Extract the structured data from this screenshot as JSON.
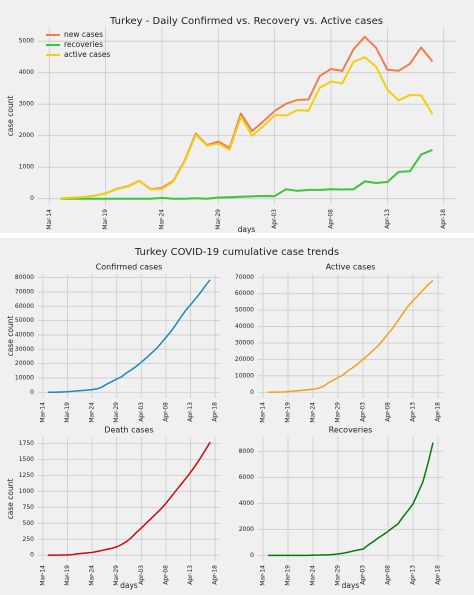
{
  "suptitle": "Turkey COVID-19 cumulative case trends",
  "chart_data": [
    {
      "type": "line",
      "title": "Turkey - Daily Confirmed vs. Recovery vs. Active cases",
      "xlabel": "days",
      "ylabel": "case count",
      "x": [
        "Mar-15",
        "Mar-16",
        "Mar-17",
        "Mar-18",
        "Mar-19",
        "Mar-20",
        "Mar-21",
        "Mar-22",
        "Mar-23",
        "Mar-24",
        "Mar-25",
        "Mar-26",
        "Mar-27",
        "Mar-28",
        "Mar-29",
        "Mar-30",
        "Mar-31",
        "Apr-01",
        "Apr-02",
        "Apr-03",
        "Apr-04",
        "Apr-05",
        "Apr-06",
        "Apr-07",
        "Apr-08",
        "Apr-09",
        "Apr-10",
        "Apr-11",
        "Apr-12",
        "Apr-13",
        "Apr-14",
        "Apr-15",
        "Apr-16",
        "Apr-17"
      ],
      "series": [
        {
          "name": "new cases",
          "color": "#ee7f4d",
          "values": [
            12,
            29,
            51,
            93,
            168,
            311,
            400,
            570,
            300,
            343,
            561,
            1196,
            2069,
            1704,
            1815,
            1610,
            2704,
            2148,
            2456,
            2786,
            3013,
            3135,
            3148,
            3892,
            4117,
            4056,
            4747,
            5138,
            4789,
            4093,
            4062,
            4281,
            4801,
            4353
          ]
        },
        {
          "name": "recoveries",
          "color": "#3cc43c",
          "values": [
            0,
            0,
            0,
            0,
            0,
            0,
            0,
            0,
            0,
            26,
            0,
            0,
            16,
            0,
            37,
            45,
            60,
            75,
            85,
            80,
            300,
            250,
            280,
            280,
            300,
            290,
            300,
            550,
            500,
            530,
            850,
            870,
            1400,
            1550
          ]
        },
        {
          "name": "active cases",
          "color": "#f3cf14",
          "values": [
            12,
            29,
            50,
            90,
            165,
            300,
            390,
            560,
            290,
            310,
            540,
            1170,
            2030,
            1680,
            1750,
            1550,
            2600,
            2000,
            2300,
            2650,
            2640,
            2810,
            2790,
            3520,
            3720,
            3660,
            4350,
            4490,
            4190,
            3460,
            3120,
            3290,
            3280,
            2680
          ]
        }
      ],
      "xlim": [
        "Mar-13",
        "Apr-19"
      ],
      "xticks": [
        "Mar-14",
        "Mar-19",
        "Mar-24",
        "Mar-29",
        "Apr-03",
        "Apr-08",
        "Apr-13",
        "Apr-18"
      ],
      "ylim": [
        -200,
        5450
      ],
      "yticks": [
        0,
        1000,
        2000,
        3000,
        4000,
        5000
      ],
      "grid": true,
      "legend": "upper left"
    },
    {
      "type": "line",
      "title": "Confirmed cases",
      "ylabel": "case count",
      "color": "#1b87bf",
      "x": [
        "Mar-15",
        "Mar-16",
        "Mar-17",
        "Mar-18",
        "Mar-19",
        "Mar-20",
        "Mar-21",
        "Mar-22",
        "Mar-23",
        "Mar-24",
        "Mar-25",
        "Mar-26",
        "Mar-27",
        "Mar-28",
        "Mar-29",
        "Mar-30",
        "Mar-31",
        "Apr-01",
        "Apr-02",
        "Apr-03",
        "Apr-04",
        "Apr-05",
        "Apr-06",
        "Apr-07",
        "Apr-08",
        "Apr-09",
        "Apr-10",
        "Apr-11",
        "Apr-12",
        "Apr-13",
        "Apr-14",
        "Apr-15",
        "Apr-16",
        "Apr-17"
      ],
      "values": [
        18,
        47,
        98,
        191,
        359,
        670,
        947,
        1236,
        1529,
        1872,
        2433,
        3629,
        5698,
        7402,
        9217,
        10827,
        13531,
        15679,
        18135,
        20921,
        23934,
        27069,
        30217,
        34109,
        38226,
        42282,
        47029,
        52167,
        56956,
        61049,
        65111,
        69392,
        74193,
        78546
      ],
      "xlim": [
        "Mar-13",
        "Apr-19"
      ],
      "xticks": [
        "Mar-14",
        "Mar-19",
        "Mar-24",
        "Mar-29",
        "Apr-03",
        "Apr-08",
        "Apr-13",
        "Apr-18"
      ],
      "ylim": [
        -4000,
        82500
      ],
      "yticks": [
        0,
        10000,
        20000,
        30000,
        40000,
        50000,
        60000,
        70000,
        80000
      ],
      "grid": true
    },
    {
      "type": "line",
      "title": "Active cases",
      "color": "#f0a21c",
      "x": [
        "Mar-15",
        "Mar-16",
        "Mar-17",
        "Mar-18",
        "Mar-19",
        "Mar-20",
        "Mar-21",
        "Mar-22",
        "Mar-23",
        "Mar-24",
        "Mar-25",
        "Mar-26",
        "Mar-27",
        "Mar-28",
        "Mar-29",
        "Mar-30",
        "Mar-31",
        "Apr-01",
        "Apr-02",
        "Apr-03",
        "Apr-04",
        "Apr-05",
        "Apr-06",
        "Apr-07",
        "Apr-08",
        "Apr-09",
        "Apr-10",
        "Apr-11",
        "Apr-12",
        "Apr-13",
        "Apr-14",
        "Apr-15",
        "Apr-16",
        "Apr-17"
      ],
      "values": [
        18,
        46,
        96,
        188,
        355,
        661,
        926,
        1206,
        1492,
        1802,
        2348,
        3512,
        5564,
        7224,
        8981,
        10497,
        13074,
        15069,
        17364,
        20012,
        22647,
        25453,
        28242,
        31802,
        35568,
        39232,
        43600,
        48101,
        52312,
        55796,
        58909,
        62200,
        65461,
        68109
      ],
      "xlim": [
        "Mar-13",
        "Apr-19"
      ],
      "xticks": [
        "Mar-14",
        "Mar-19",
        "Mar-24",
        "Mar-29",
        "Apr-03",
        "Apr-08",
        "Apr-13",
        "Apr-18"
      ],
      "ylim": [
        -3500,
        72000
      ],
      "yticks": [
        0,
        10000,
        20000,
        30000,
        40000,
        50000,
        60000,
        70000
      ],
      "grid": true
    },
    {
      "type": "line",
      "title": "Death cases",
      "xlabel": "days",
      "ylabel": "case count",
      "color": "#cc0a0a",
      "x": [
        "Mar-15",
        "Mar-16",
        "Mar-17",
        "Mar-18",
        "Mar-19",
        "Mar-20",
        "Mar-21",
        "Mar-22",
        "Mar-23",
        "Mar-24",
        "Mar-25",
        "Mar-26",
        "Mar-27",
        "Mar-28",
        "Mar-29",
        "Mar-30",
        "Mar-31",
        "Apr-01",
        "Apr-02",
        "Apr-03",
        "Apr-04",
        "Apr-05",
        "Apr-06",
        "Apr-07",
        "Apr-08",
        "Apr-09",
        "Apr-10",
        "Apr-11",
        "Apr-12",
        "Apr-13",
        "Apr-14",
        "Apr-15",
        "Apr-16",
        "Apr-17"
      ],
      "values": [
        0,
        1,
        2,
        3,
        4,
        9,
        21,
        30,
        37,
        44,
        59,
        75,
        92,
        108,
        131,
        168,
        214,
        277,
        356,
        425,
        501,
        574,
        649,
        725,
        812,
        908,
        1006,
        1101,
        1198,
        1296,
        1403,
        1518,
        1643,
        1769
      ],
      "xlim": [
        "Mar-13",
        "Apr-19"
      ],
      "xticks": [
        "Mar-14",
        "Mar-19",
        "Mar-24",
        "Mar-29",
        "Apr-03",
        "Apr-08",
        "Apr-13",
        "Apr-18"
      ],
      "ylim": [
        -90,
        1850
      ],
      "yticks": [
        0,
        250,
        500,
        750,
        1000,
        1250,
        1500,
        1750
      ],
      "grid": true
    },
    {
      "type": "line",
      "title": "Recoveries",
      "xlabel": "days",
      "color": "#087a08",
      "x": [
        "Mar-15",
        "Mar-16",
        "Mar-17",
        "Mar-18",
        "Mar-19",
        "Mar-20",
        "Mar-21",
        "Mar-22",
        "Mar-23",
        "Mar-24",
        "Mar-25",
        "Mar-26",
        "Mar-27",
        "Mar-28",
        "Mar-29",
        "Mar-30",
        "Mar-31",
        "Apr-01",
        "Apr-02",
        "Apr-03",
        "Apr-04",
        "Apr-05",
        "Apr-06",
        "Apr-07",
        "Apr-08",
        "Apr-09",
        "Apr-10",
        "Apr-11",
        "Apr-12",
        "Apr-13",
        "Apr-14",
        "Apr-15",
        "Apr-16",
        "Apr-17"
      ],
      "values": [
        0,
        0,
        0,
        0,
        0,
        0,
        0,
        0,
        0,
        26,
        26,
        42,
        42,
        70,
        105,
        162,
        243,
        333,
        415,
        484,
        786,
        1042,
        1326,
        1582,
        1846,
        2142,
        2423,
        2965,
        3446,
        3957,
        4799,
        5674,
        7089,
        8668
      ],
      "xlim": [
        "Mar-13",
        "Apr-19"
      ],
      "xticks": [
        "Mar-14",
        "Mar-19",
        "Mar-24",
        "Mar-29",
        "Apr-03",
        "Apr-08",
        "Apr-13",
        "Apr-18"
      ],
      "ylim": [
        -430,
        9100
      ],
      "yticks": [
        0,
        2000,
        4000,
        6000,
        8000
      ],
      "grid": true
    }
  ]
}
